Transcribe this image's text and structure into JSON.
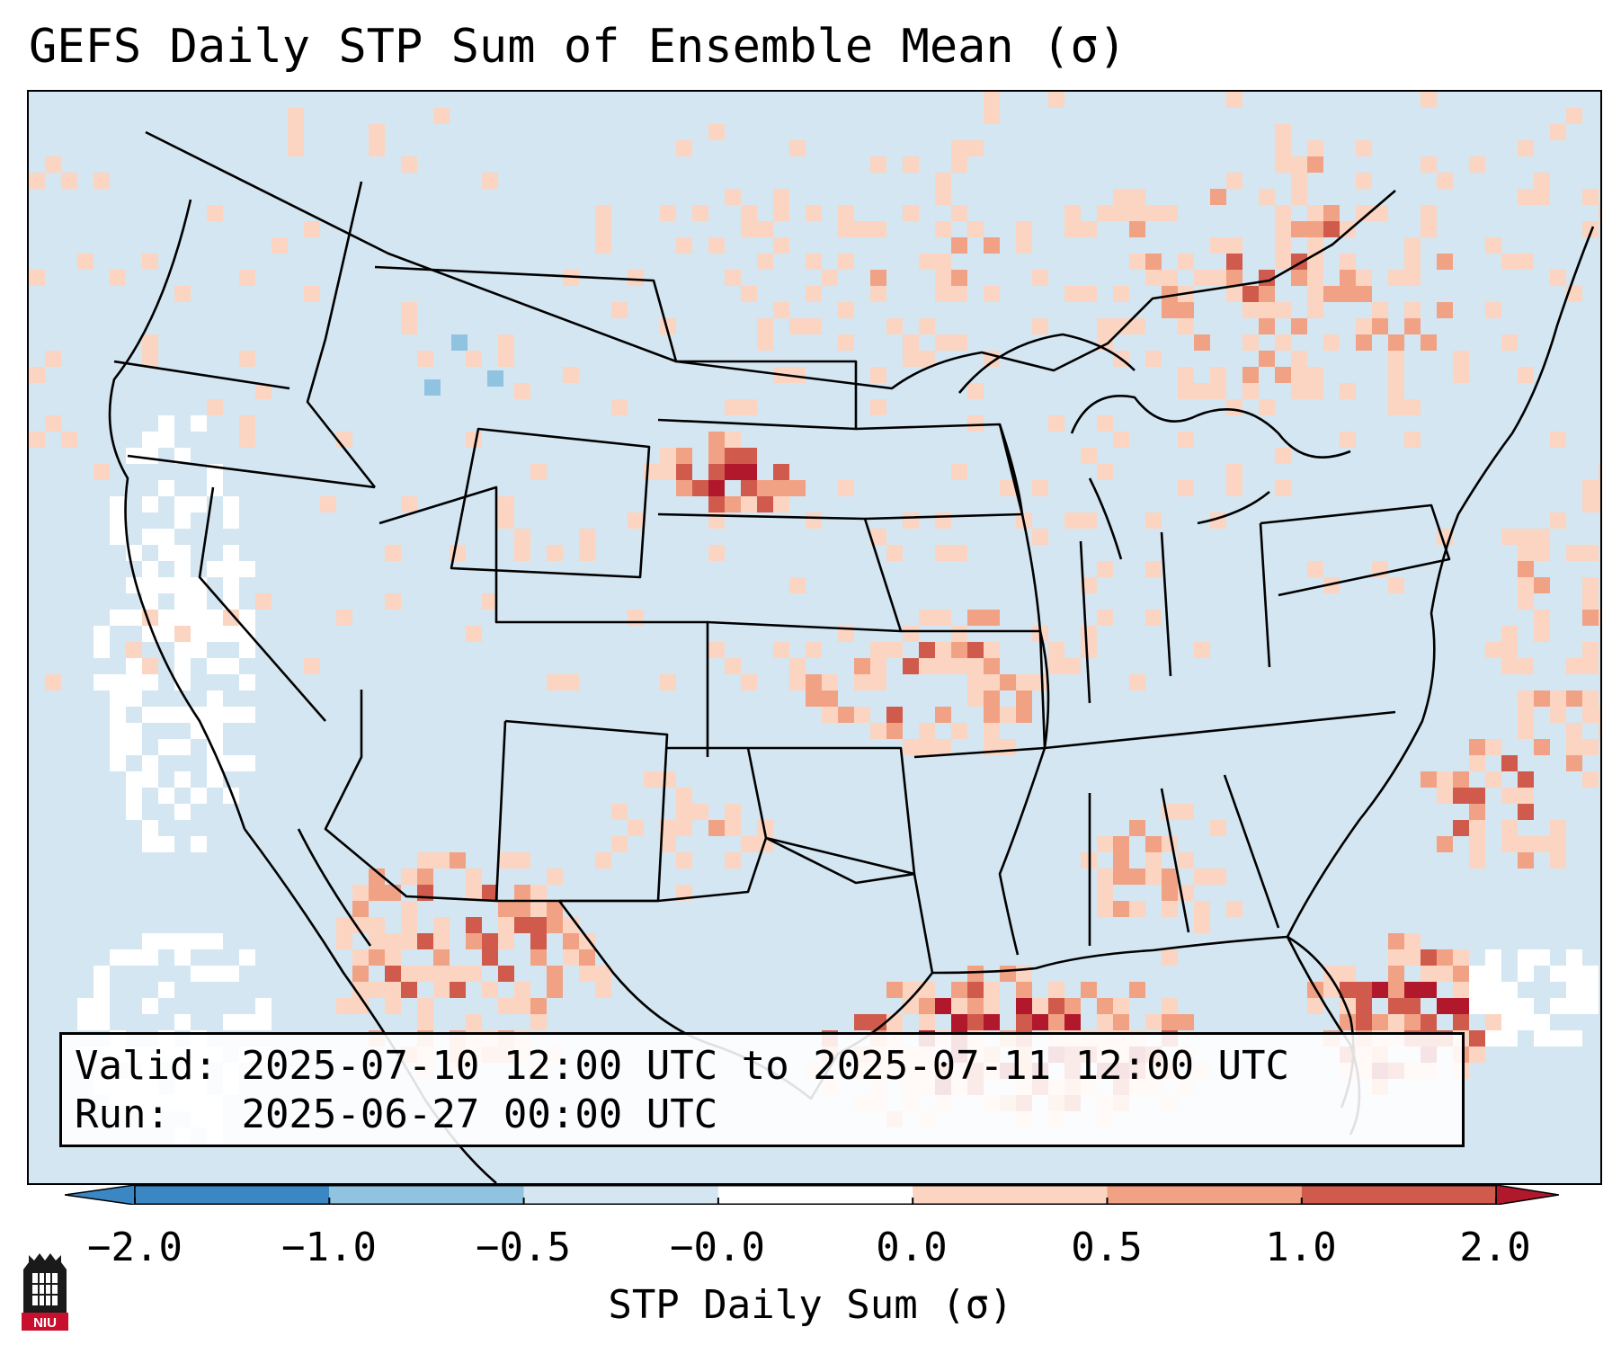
{
  "title": "GEFS Daily STP Sum of Ensemble Mean (σ)",
  "info": {
    "valid_label": "Valid:",
    "valid_value": "2025-07-10 12:00 UTC to 2025-07-11 12:00 UTC",
    "run_label": "Run:",
    "run_value": "2025-06-27 00:00 UTC"
  },
  "colorbar": {
    "label": "STP Daily Sum (σ)",
    "ticks": [
      "−2.0",
      "−1.0",
      "−0.5",
      "−0.0",
      "0.0",
      "0.5",
      "1.0",
      "2.0"
    ],
    "colors": [
      "#3a87c4",
      "#90c3e0",
      "#d4e6f1",
      "#ffffff",
      "#fbd5c1",
      "#f2a284",
      "#d05a4c",
      "#b2182b"
    ]
  },
  "logo": {
    "text": "NIU",
    "icon": "niu-tower-icon"
  },
  "palette": {
    "background": "#d4e6f1",
    "light_red": "#fbd5c1",
    "mid_red": "#f2a284",
    "red": "#d05a4c",
    "dark_red": "#b2182b",
    "blue": "#90c3e0",
    "white": "#ffffff"
  }
}
